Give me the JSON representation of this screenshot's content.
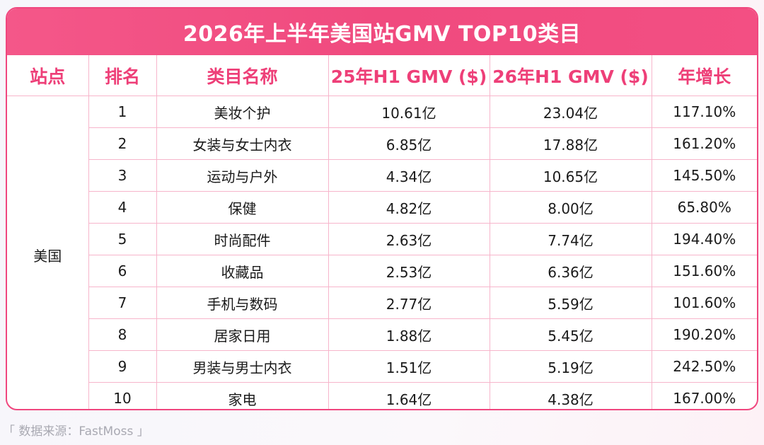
{
  "title": "2026年上半年美国站GMV TOP10类目",
  "headers": {
    "station": "站点",
    "rank": "排名",
    "category": "类目名称",
    "gmv25": "25年H1 GMV ($)",
    "gmv26": "26年H1 GMV ($)",
    "growth": "年增长"
  },
  "station": "美国",
  "rows": [
    {
      "rank": "1",
      "category": "美妆个护",
      "gmv25": "10.61亿",
      "gmv26": "23.04亿",
      "growth": "117.10%"
    },
    {
      "rank": "2",
      "category": "女装与女士内衣",
      "gmv25": "6.85亿",
      "gmv26": "17.88亿",
      "growth": "161.20%"
    },
    {
      "rank": "3",
      "category": "运动与户外",
      "gmv25": "4.34亿",
      "gmv26": "10.65亿",
      "growth": "145.50%"
    },
    {
      "rank": "4",
      "category": "保健",
      "gmv25": "4.82亿",
      "gmv26": "8.00亿",
      "growth": "65.80%"
    },
    {
      "rank": "5",
      "category": "时尚配件",
      "gmv25": "2.63亿",
      "gmv26": "7.74亿",
      "growth": "194.40%"
    },
    {
      "rank": "6",
      "category": "收藏品",
      "gmv25": "2.53亿",
      "gmv26": "6.36亿",
      "growth": "151.60%"
    },
    {
      "rank": "7",
      "category": "手机与数码",
      "gmv25": "2.77亿",
      "gmv26": "5.59亿",
      "growth": "101.60%"
    },
    {
      "rank": "8",
      "category": "居家日用",
      "gmv25": "1.88亿",
      "gmv26": "5.45亿",
      "growth": "190.20%"
    },
    {
      "rank": "9",
      "category": "男装与男士内衣",
      "gmv25": "1.51亿",
      "gmv26": "5.19亿",
      "growth": "242.50%"
    },
    {
      "rank": "10",
      "category": "家电",
      "gmv25": "1.64亿",
      "gmv26": "4.38亿",
      "growth": "167.00%"
    }
  ],
  "source": "「 数据来源：FastMoss 」",
  "colors": {
    "accent": "#f04a7e",
    "header_text": "#ee3f78",
    "grid": "#f7b5cb"
  }
}
